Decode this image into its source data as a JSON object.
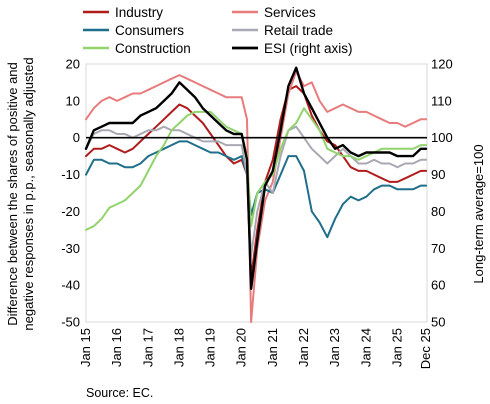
{
  "chart_data": {
    "type": "line",
    "source": "Source: EC.",
    "left_axis": {
      "label_line1": "Difference between the shares of positive and",
      "label_line2": "negative responses in p.p., seasonally adjusted",
      "ylim": [
        -50,
        20
      ],
      "ticks": [
        20,
        10,
        0,
        -10,
        -20,
        -30,
        -40,
        -50
      ]
    },
    "right_axis": {
      "label": "Long-term average=100",
      "ylim": [
        50,
        120
      ],
      "ticks": [
        120,
        110,
        100,
        90,
        80,
        70,
        60,
        50
      ]
    },
    "x_axis": {
      "range": [
        2015.0,
        2025.95
      ],
      "ticks": [
        {
          "x": 2015.0,
          "label": "Jan 15"
        },
        {
          "x": 2016.0,
          "label": "Jan 16"
        },
        {
          "x": 2017.0,
          "label": "Jan 17"
        },
        {
          "x": 2018.0,
          "label": "Jan 18"
        },
        {
          "x": 2019.0,
          "label": "Jan 19"
        },
        {
          "x": 2020.0,
          "label": "Jan 20"
        },
        {
          "x": 2021.0,
          "label": "Jan 21"
        },
        {
          "x": 2022.0,
          "label": "Jan 22"
        },
        {
          "x": 2023.0,
          "label": "Jan 23"
        },
        {
          "x": 2024.0,
          "label": "Jan 24"
        },
        {
          "x": 2025.0,
          "label": "Jan 25"
        },
        {
          "x": 2025.92,
          "label": "Dec 25"
        }
      ]
    },
    "legend": [
      {
        "name": "Industry",
        "color": "#b01c1c"
      },
      {
        "name": "Services",
        "color": "#e87b7b"
      },
      {
        "name": "Consumers",
        "color": "#1f6f8b"
      },
      {
        "name": "Retail trade",
        "color": "#a9a9b3"
      },
      {
        "name": "Construction",
        "color": "#92d36e"
      },
      {
        "name": "ESI (right axis)",
        "color": "#000000"
      }
    ],
    "series": [
      {
        "name": "Industry",
        "color": "#b01c1c",
        "axis": "left",
        "points": [
          [
            2015.0,
            -5
          ],
          [
            2015.25,
            -3
          ],
          [
            2015.5,
            -3
          ],
          [
            2015.75,
            -2
          ],
          [
            2016.0,
            -3
          ],
          [
            2016.25,
            -4
          ],
          [
            2016.5,
            -3
          ],
          [
            2016.75,
            -1
          ],
          [
            2017.0,
            1
          ],
          [
            2017.25,
            3
          ],
          [
            2017.5,
            5
          ],
          [
            2017.75,
            7
          ],
          [
            2018.0,
            9
          ],
          [
            2018.25,
            8
          ],
          [
            2018.5,
            6
          ],
          [
            2018.75,
            4
          ],
          [
            2019.0,
            1
          ],
          [
            2019.25,
            -2
          ],
          [
            2019.5,
            -5
          ],
          [
            2019.75,
            -7
          ],
          [
            2020.0,
            -6
          ],
          [
            2020.17,
            -10
          ],
          [
            2020.3,
            -38
          ],
          [
            2020.5,
            -25
          ],
          [
            2020.75,
            -12
          ],
          [
            2021.0,
            -6
          ],
          [
            2021.25,
            5
          ],
          [
            2021.5,
            13
          ],
          [
            2021.75,
            14
          ],
          [
            2022.0,
            12
          ],
          [
            2022.25,
            6
          ],
          [
            2022.5,
            2
          ],
          [
            2022.75,
            -1
          ],
          [
            2023.0,
            -2
          ],
          [
            2023.25,
            -5
          ],
          [
            2023.5,
            -8
          ],
          [
            2023.75,
            -9
          ],
          [
            2024.0,
            -9
          ],
          [
            2024.25,
            -10
          ],
          [
            2024.5,
            -11
          ],
          [
            2024.75,
            -12
          ],
          [
            2025.0,
            -12
          ],
          [
            2025.25,
            -11
          ],
          [
            2025.5,
            -10
          ],
          [
            2025.75,
            -9
          ],
          [
            2025.92,
            -9
          ]
        ]
      },
      {
        "name": "Services",
        "color": "#e87b7b",
        "axis": "left",
        "points": [
          [
            2015.0,
            5
          ],
          [
            2015.25,
            8
          ],
          [
            2015.5,
            10
          ],
          [
            2015.75,
            11
          ],
          [
            2016.0,
            10
          ],
          [
            2016.25,
            11
          ],
          [
            2016.5,
            12
          ],
          [
            2016.75,
            12
          ],
          [
            2017.0,
            13
          ],
          [
            2017.25,
            14
          ],
          [
            2017.5,
            15
          ],
          [
            2017.75,
            16
          ],
          [
            2018.0,
            17
          ],
          [
            2018.25,
            16
          ],
          [
            2018.5,
            15
          ],
          [
            2018.75,
            14
          ],
          [
            2019.0,
            13
          ],
          [
            2019.25,
            12
          ],
          [
            2019.5,
            11
          ],
          [
            2019.75,
            11
          ],
          [
            2020.0,
            11
          ],
          [
            2020.17,
            5
          ],
          [
            2020.3,
            -50
          ],
          [
            2020.5,
            -30
          ],
          [
            2020.75,
            -17
          ],
          [
            2021.0,
            -12
          ],
          [
            2021.25,
            0
          ],
          [
            2021.5,
            12
          ],
          [
            2021.75,
            18
          ],
          [
            2022.0,
            14
          ],
          [
            2022.25,
            15
          ],
          [
            2022.5,
            10
          ],
          [
            2022.75,
            7
          ],
          [
            2023.0,
            8
          ],
          [
            2023.25,
            9
          ],
          [
            2023.5,
            8
          ],
          [
            2023.75,
            7
          ],
          [
            2024.0,
            7
          ],
          [
            2024.25,
            6
          ],
          [
            2024.5,
            5
          ],
          [
            2024.75,
            4
          ],
          [
            2025.0,
            4
          ],
          [
            2025.25,
            3
          ],
          [
            2025.5,
            4
          ],
          [
            2025.75,
            5
          ],
          [
            2025.92,
            5
          ]
        ]
      },
      {
        "name": "Consumers",
        "color": "#1f6f8b",
        "axis": "left",
        "points": [
          [
            2015.0,
            -10
          ],
          [
            2015.25,
            -6
          ],
          [
            2015.5,
            -6
          ],
          [
            2015.75,
            -7
          ],
          [
            2016.0,
            -7
          ],
          [
            2016.25,
            -8
          ],
          [
            2016.5,
            -8
          ],
          [
            2016.75,
            -7
          ],
          [
            2017.0,
            -5
          ],
          [
            2017.25,
            -4
          ],
          [
            2017.5,
            -3
          ],
          [
            2017.75,
            -2
          ],
          [
            2018.0,
            -1
          ],
          [
            2018.25,
            -1
          ],
          [
            2018.5,
            -2
          ],
          [
            2018.75,
            -3
          ],
          [
            2019.0,
            -4
          ],
          [
            2019.25,
            -4
          ],
          [
            2019.5,
            -5
          ],
          [
            2019.75,
            -6
          ],
          [
            2020.0,
            -5
          ],
          [
            2020.17,
            -10
          ],
          [
            2020.3,
            -21
          ],
          [
            2020.5,
            -15
          ],
          [
            2020.75,
            -14
          ],
          [
            2021.0,
            -15
          ],
          [
            2021.25,
            -10
          ],
          [
            2021.5,
            -5
          ],
          [
            2021.75,
            -5
          ],
          [
            2022.0,
            -9
          ],
          [
            2022.25,
            -20
          ],
          [
            2022.5,
            -23
          ],
          [
            2022.75,
            -27
          ],
          [
            2023.0,
            -22
          ],
          [
            2023.25,
            -18
          ],
          [
            2023.5,
            -16
          ],
          [
            2023.75,
            -17
          ],
          [
            2024.0,
            -16
          ],
          [
            2024.25,
            -14
          ],
          [
            2024.5,
            -13
          ],
          [
            2024.75,
            -13
          ],
          [
            2025.0,
            -14
          ],
          [
            2025.25,
            -14
          ],
          [
            2025.5,
            -14
          ],
          [
            2025.75,
            -13
          ],
          [
            2025.92,
            -13
          ]
        ]
      },
      {
        "name": "Retail trade",
        "color": "#a9a9b3",
        "axis": "left",
        "points": [
          [
            2015.0,
            -3
          ],
          [
            2015.25,
            1
          ],
          [
            2015.5,
            2
          ],
          [
            2015.75,
            2
          ],
          [
            2016.0,
            1
          ],
          [
            2016.25,
            1
          ],
          [
            2016.5,
            0
          ],
          [
            2016.75,
            1
          ],
          [
            2017.0,
            2
          ],
          [
            2017.25,
            2
          ],
          [
            2017.5,
            3
          ],
          [
            2017.75,
            2
          ],
          [
            2018.0,
            2
          ],
          [
            2018.25,
            1
          ],
          [
            2018.5,
            0
          ],
          [
            2018.75,
            -1
          ],
          [
            2019.0,
            -1
          ],
          [
            2019.25,
            -1
          ],
          [
            2019.5,
            -2
          ],
          [
            2019.75,
            -2
          ],
          [
            2020.0,
            -2
          ],
          [
            2020.17,
            -10
          ],
          [
            2020.3,
            -32
          ],
          [
            2020.5,
            -20
          ],
          [
            2020.75,
            -12
          ],
          [
            2021.0,
            -15
          ],
          [
            2021.25,
            -5
          ],
          [
            2021.5,
            2
          ],
          [
            2021.75,
            3
          ],
          [
            2022.0,
            0
          ],
          [
            2022.25,
            -3
          ],
          [
            2022.5,
            -5
          ],
          [
            2022.75,
            -7
          ],
          [
            2023.0,
            -5
          ],
          [
            2023.25,
            -3
          ],
          [
            2023.5,
            -5
          ],
          [
            2023.75,
            -7
          ],
          [
            2024.0,
            -7
          ],
          [
            2024.25,
            -6
          ],
          [
            2024.5,
            -7
          ],
          [
            2024.75,
            -7
          ],
          [
            2025.0,
            -8
          ],
          [
            2025.25,
            -7
          ],
          [
            2025.5,
            -7
          ],
          [
            2025.75,
            -6
          ],
          [
            2025.92,
            -6
          ]
        ]
      },
      {
        "name": "Construction",
        "color": "#92d36e",
        "axis": "left",
        "points": [
          [
            2015.0,
            -25
          ],
          [
            2015.25,
            -24
          ],
          [
            2015.5,
            -22
          ],
          [
            2015.75,
            -19
          ],
          [
            2016.0,
            -18
          ],
          [
            2016.25,
            -17
          ],
          [
            2016.5,
            -15
          ],
          [
            2016.75,
            -13
          ],
          [
            2017.0,
            -9
          ],
          [
            2017.25,
            -5
          ],
          [
            2017.5,
            -2
          ],
          [
            2017.75,
            2
          ],
          [
            2018.0,
            4
          ],
          [
            2018.25,
            6
          ],
          [
            2018.5,
            7
          ],
          [
            2018.75,
            7
          ],
          [
            2019.0,
            7
          ],
          [
            2019.25,
            5
          ],
          [
            2019.5,
            3
          ],
          [
            2019.75,
            2
          ],
          [
            2020.0,
            1
          ],
          [
            2020.17,
            -5
          ],
          [
            2020.3,
            -24
          ],
          [
            2020.5,
            -15
          ],
          [
            2020.75,
            -12
          ],
          [
            2021.0,
            -10
          ],
          [
            2021.25,
            -3
          ],
          [
            2021.5,
            2
          ],
          [
            2021.75,
            4
          ],
          [
            2022.0,
            8
          ],
          [
            2022.25,
            5
          ],
          [
            2022.5,
            2
          ],
          [
            2022.75,
            -3
          ],
          [
            2023.0,
            -4
          ],
          [
            2023.25,
            -5
          ],
          [
            2023.5,
            -5
          ],
          [
            2023.75,
            -6
          ],
          [
            2024.0,
            -5
          ],
          [
            2024.25,
            -4
          ],
          [
            2024.5,
            -3
          ],
          [
            2024.75,
            -3
          ],
          [
            2025.0,
            -3
          ],
          [
            2025.25,
            -3
          ],
          [
            2025.5,
            -3
          ],
          [
            2025.75,
            -2
          ],
          [
            2025.92,
            -2
          ]
        ]
      },
      {
        "name": "ESI (right axis)",
        "color": "#000000",
        "axis": "right",
        "points": [
          [
            2015.0,
            97
          ],
          [
            2015.25,
            102
          ],
          [
            2015.5,
            103
          ],
          [
            2015.75,
            104
          ],
          [
            2016.0,
            104
          ],
          [
            2016.25,
            104
          ],
          [
            2016.5,
            104
          ],
          [
            2016.75,
            106
          ],
          [
            2017.0,
            107
          ],
          [
            2017.25,
            108
          ],
          [
            2017.5,
            110
          ],
          [
            2017.75,
            112
          ],
          [
            2018.0,
            115
          ],
          [
            2018.25,
            113
          ],
          [
            2018.5,
            111
          ],
          [
            2018.75,
            108
          ],
          [
            2019.0,
            106
          ],
          [
            2019.25,
            104
          ],
          [
            2019.5,
            102
          ],
          [
            2019.75,
            101
          ],
          [
            2020.0,
            101
          ],
          [
            2020.17,
            94
          ],
          [
            2020.3,
            59
          ],
          [
            2020.5,
            72
          ],
          [
            2020.75,
            87
          ],
          [
            2021.0,
            91
          ],
          [
            2021.25,
            102
          ],
          [
            2021.5,
            114
          ],
          [
            2021.75,
            119
          ],
          [
            2022.0,
            112
          ],
          [
            2022.25,
            108
          ],
          [
            2022.5,
            104
          ],
          [
            2022.75,
            100
          ],
          [
            2023.0,
            97
          ],
          [
            2023.25,
            98
          ],
          [
            2023.5,
            96
          ],
          [
            2023.75,
            95
          ],
          [
            2024.0,
            96
          ],
          [
            2024.25,
            96
          ],
          [
            2024.5,
            96
          ],
          [
            2024.75,
            96
          ],
          [
            2025.0,
            95
          ],
          [
            2025.25,
            95
          ],
          [
            2025.5,
            95
          ],
          [
            2025.75,
            97
          ],
          [
            2025.92,
            97
          ]
        ]
      }
    ]
  }
}
